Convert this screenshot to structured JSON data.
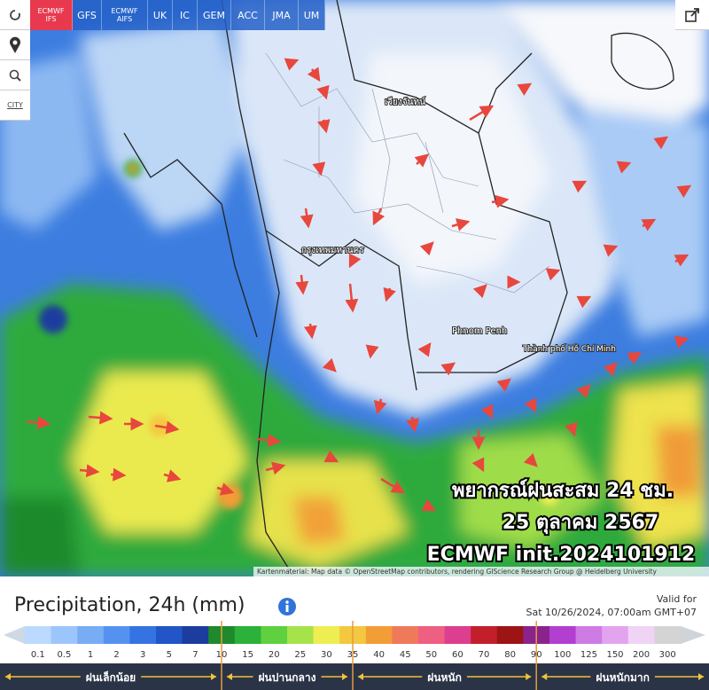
{
  "toolbar": {
    "city": "CITY"
  },
  "tabs": [
    "ECMWF IFS",
    "GFS",
    "ECMWF AIFS",
    "UK",
    "IC",
    "GEM",
    "ACC",
    "JMA",
    "UM"
  ],
  "map": {
    "place_labels": [
      "เวียงจันทน์",
      "กรุงเทพมหานคร",
      "Phnom Penh",
      "Thành phố Hồ Chí Minh"
    ],
    "overlay": [
      "พยากรณ์ฝนสะสม 24 ชม.",
      "25 ตุลาคม 2567",
      "ECMWF init.2024101912"
    ],
    "attribution": "Kartenmaterial: Map data © OpenStreetMap contributors, rendering GIScience Research Group @ Heidelberg University"
  },
  "legend": {
    "title": "Precipitation, 24h (mm)",
    "valid_label": "Valid for",
    "valid_time": "Sat 10/26/2024, 07:00am GMT+07",
    "stops": [
      {
        "label": 0.1,
        "color": "#bcd9ff"
      },
      {
        "label": 0.5,
        "color": "#9cc6fb"
      },
      {
        "label": 1,
        "color": "#78adf5"
      },
      {
        "label": 2,
        "color": "#5592ef"
      },
      {
        "label": 3,
        "color": "#3573e3"
      },
      {
        "label": 5,
        "color": "#2155c8"
      },
      {
        "label": 7,
        "color": "#1c3c9e"
      },
      {
        "label": 10,
        "color": "#1f8a2c"
      },
      {
        "label": 15,
        "color": "#2cb13a"
      },
      {
        "label": 20,
        "color": "#5fd03f"
      },
      {
        "label": 25,
        "color": "#a6e34a"
      },
      {
        "label": 30,
        "color": "#eeee52"
      },
      {
        "label": 35,
        "color": "#f4c740"
      },
      {
        "label": 40,
        "color": "#f29d36"
      },
      {
        "label": 45,
        "color": "#ef7a5a"
      },
      {
        "label": 50,
        "color": "#ee5f82"
      },
      {
        "label": 60,
        "color": "#dc3f8f"
      },
      {
        "label": 70,
        "color": "#c21f2a"
      },
      {
        "label": 80,
        "color": "#9c1414"
      },
      {
        "label": 90,
        "color": "#8a248c"
      },
      {
        "label": 100,
        "color": "#b23fd0"
      },
      {
        "label": 125,
        "color": "#cf7be4"
      },
      {
        "label": 150,
        "color": "#e3a4ef"
      },
      {
        "label": 200,
        "color": "#f0d4f5"
      },
      {
        "label": 300,
        "color": "#d4d4d4"
      }
    ],
    "categories": [
      "ฝนเล็กน้อย",
      "ฝนปานกลาง",
      "ฝนหนัก",
      "ฝนหนักมาก"
    ]
  }
}
